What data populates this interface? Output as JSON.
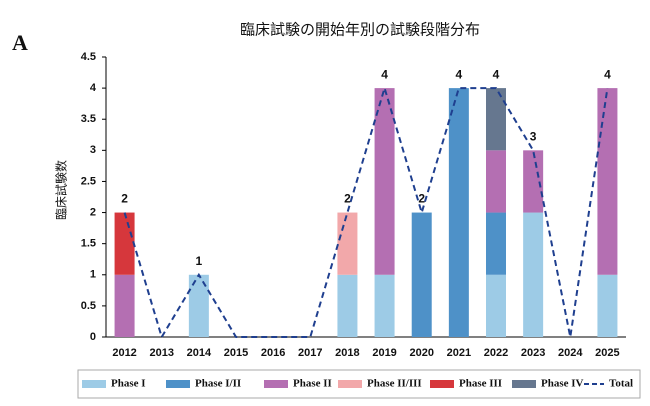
{
  "panel_label": "A",
  "chart_data": {
    "type": "bar",
    "stacked": true,
    "title": "臨床試験の開始年別の試験段階分布",
    "y_label": "臨床試験数",
    "categories": [
      "2012",
      "2013",
      "2014",
      "2015",
      "2016",
      "2017",
      "2018",
      "2019",
      "2020",
      "2021",
      "2022",
      "2023",
      "2024",
      "2025"
    ],
    "ylim": [
      0,
      4.5
    ],
    "yticks": [
      0,
      0.5,
      1,
      1.5,
      2,
      2.5,
      3,
      3.5,
      4,
      4.5
    ],
    "grid": false,
    "legend": "bottom",
    "series": [
      {
        "name": "Phase I",
        "color": "#9dcbe6",
        "values": [
          0,
          0,
          1,
          0,
          0,
          0,
          1,
          1,
          0,
          0,
          1,
          2,
          0,
          1
        ]
      },
      {
        "name": "Phase I/II",
        "color": "#4e91c8",
        "values": [
          0,
          0,
          0,
          0,
          0,
          0,
          0,
          0,
          2,
          4,
          1,
          0,
          0,
          0
        ]
      },
      {
        "name": "Phase II",
        "color": "#b46fb2",
        "values": [
          1,
          0,
          0,
          0,
          0,
          0,
          0,
          3,
          0,
          0,
          1,
          1,
          0,
          3
        ]
      },
      {
        "name": "Phase II/III",
        "color": "#f2a8aa",
        "values": [
          0,
          0,
          0,
          0,
          0,
          0,
          1,
          0,
          0,
          0,
          0,
          0,
          0,
          0
        ]
      },
      {
        "name": "Phase III",
        "color": "#d6373c",
        "values": [
          1,
          0,
          0,
          0,
          0,
          0,
          0,
          0,
          0,
          0,
          0,
          0,
          0,
          0
        ]
      },
      {
        "name": "Phase IV",
        "color": "#66778f",
        "values": [
          0,
          0,
          0,
          0,
          0,
          0,
          0,
          0,
          0,
          0,
          1,
          0,
          0,
          0
        ]
      },
      {
        "name": "Total",
        "type": "line",
        "color": "#1f3f8f",
        "values": [
          2,
          0,
          1,
          0,
          0,
          0,
          2,
          4,
          2,
          4,
          4,
          3,
          0,
          4
        ]
      }
    ]
  }
}
